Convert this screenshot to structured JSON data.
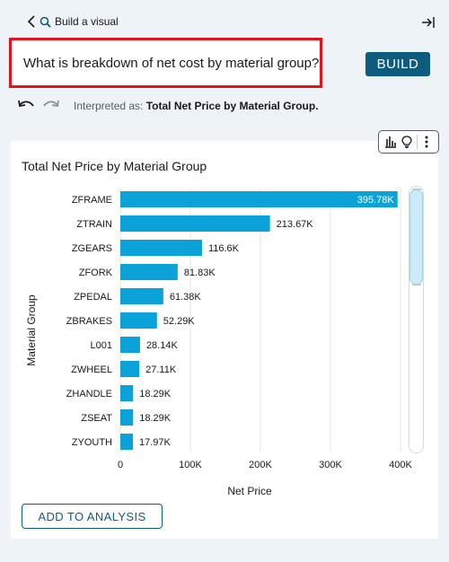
{
  "header": {
    "back_label": "Build a visual"
  },
  "query": {
    "text": "What is breakdown of net cost by material group?",
    "build_label": "BUILD"
  },
  "interpretation": {
    "prefix": "Interpreted as: ",
    "value": "Total Net Price by Material Group."
  },
  "visual": {
    "title": "Total Net Price by Material Group",
    "add_label": "ADD TO ANALYSIS"
  },
  "colors": {
    "bar": "#0aa2d8",
    "accent": "#0d5c7d",
    "highlight_border": "#e3131b"
  },
  "chart_data": {
    "type": "bar",
    "orientation": "horizontal",
    "title": "Total Net Price by Material Group",
    "xlabel": "Net Price",
    "ylabel": "Material Group",
    "categories": [
      "ZFRAME",
      "ZTRAIN",
      "ZGEARS",
      "ZFORK",
      "ZPEDAL",
      "ZBRAKES",
      "L001",
      "ZWHEEL",
      "ZHANDLE",
      "ZSEAT",
      "ZYOUTH"
    ],
    "values": [
      395780,
      213670,
      116600,
      81830,
      61380,
      52290,
      28140,
      27110,
      18290,
      18290,
      17970
    ],
    "data_labels": [
      "395.78K",
      "213.67K",
      "116.6K",
      "81.83K",
      "61.38K",
      "52.29K",
      "28.14K",
      "27.11K",
      "18.29K",
      "18.29K",
      "17.97K"
    ],
    "xticks": [
      0,
      100000,
      200000,
      300000,
      400000
    ],
    "xtick_labels": [
      "0",
      "100K",
      "200K",
      "300K",
      "400K"
    ],
    "xlim": [
      0,
      400000
    ],
    "grid": true,
    "legend": "none"
  }
}
